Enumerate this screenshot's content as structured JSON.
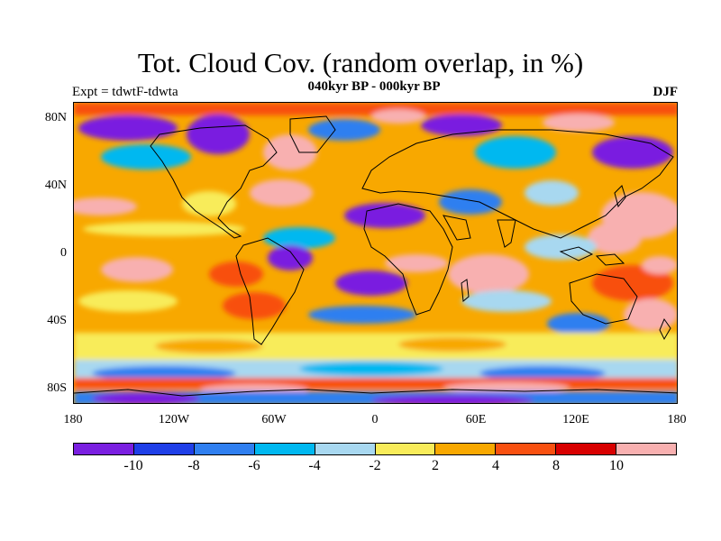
{
  "title": "Tot. Cloud Cov. (random overlap, in %)",
  "subtitle": "040kyr BP - 000kyr BP",
  "left_label": "Expt = tdwtF-tdwta",
  "season": "DJF",
  "lat_ticks": [
    "80N",
    "40N",
    "0",
    "40S",
    "80S"
  ],
  "lon_ticks": [
    "180",
    "120W",
    "60W",
    "0",
    "60E",
    "120E",
    "180"
  ],
  "colorbar": {
    "colors": [
      "#7a1fe0",
      "#1f3fe8",
      "#2f7ff0",
      "#00b8f0",
      "#a8d8f0",
      "#f8ec5a",
      "#f8a800",
      "#f85010",
      "#d80000",
      "#f8b0b0"
    ],
    "labels": [
      "-10",
      "-8",
      "-6",
      "-4",
      "-2",
      "2",
      "4",
      "8",
      "10"
    ]
  }
}
